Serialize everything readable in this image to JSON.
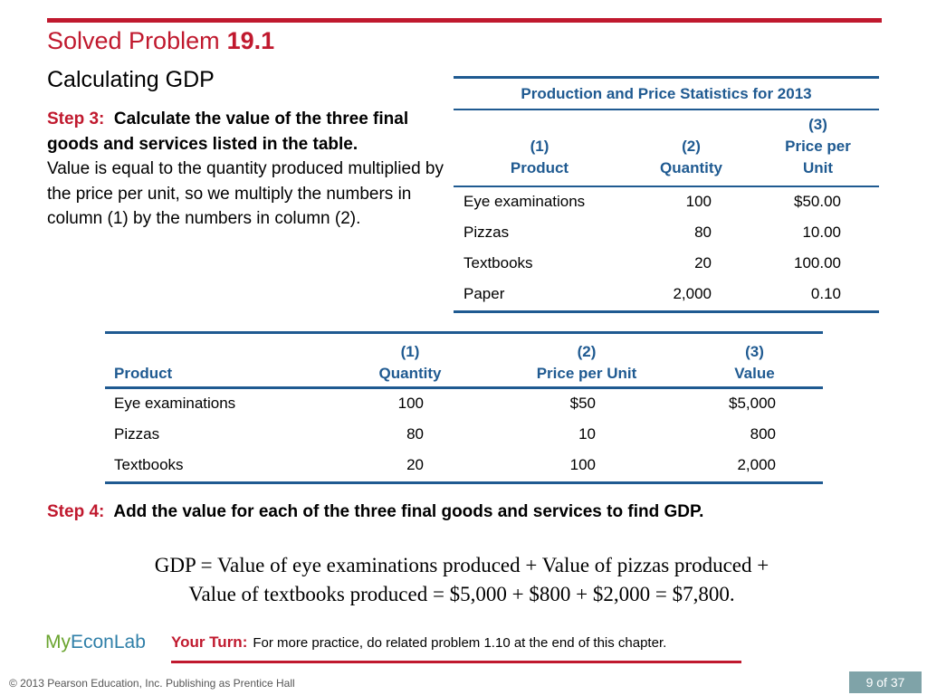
{
  "header": {
    "title": "Solved Problem",
    "number": "19.1",
    "subtitle": "Calculating GDP"
  },
  "step3": {
    "label": "Step 3:",
    "bold_text": "Calculate the value of the three final goods and services listed in the table.",
    "body_text": "Value is equal to the quantity produced multiplied by the price per unit, so we multiply the numbers in column (1) by the numbers in column (2)."
  },
  "table1": {
    "caption": "Production and Price Statistics for 2013",
    "headers": [
      {
        "num": "(1)",
        "label": "Product"
      },
      {
        "num": "(2)",
        "label": "Quantity"
      },
      {
        "num": "(3)",
        "label": "Price per",
        "label2": "Unit"
      }
    ],
    "rows": [
      {
        "product": "Eye examinations",
        "quantity": "100",
        "price": "$50.00"
      },
      {
        "product": "Pizzas",
        "quantity": "80",
        "price": "10.00"
      },
      {
        "product": "Textbooks",
        "quantity": "20",
        "price": "100.00"
      },
      {
        "product": "Paper",
        "quantity": "2,000",
        "price": "0.10"
      }
    ]
  },
  "table2": {
    "headers": [
      {
        "num": "",
        "label": "Product"
      },
      {
        "num": "(1)",
        "label": "Quantity"
      },
      {
        "num": "(2)",
        "label": "Price per Unit"
      },
      {
        "num": "(3)",
        "label": "Value"
      }
    ],
    "rows": [
      {
        "product": "Eye examinations",
        "quantity": "100",
        "price": "$50",
        "value": "$5,000"
      },
      {
        "product": "Pizzas",
        "quantity": "80",
        "price": "10",
        "value": "800"
      },
      {
        "product": "Textbooks",
        "quantity": "20",
        "price": "100",
        "value": "2,000"
      }
    ]
  },
  "step4": {
    "label": "Step 4:",
    "text": "Add the value for each of the three final goods and services to find GDP."
  },
  "formula": {
    "line1": "GDP = Value of eye examinations produced + Value of pizzas produced +",
    "line2": "Value of textbooks produced = $5,000 + $800 + $2,000 = $7,800."
  },
  "footer": {
    "logo_my": "My",
    "logo_rest": "EconLab",
    "your_turn_label": "Your Turn:",
    "your_turn_text": "For more practice, do related problem 1.10 at the end of this chapter.",
    "copyright": "© 2013 Pearson Education, Inc. Publishing as Prentice Hall",
    "page": "9 of 37"
  },
  "colors": {
    "accent_red": "#c0192e",
    "table_blue": "#1f5a91",
    "logo_blue": "#2f7fa8",
    "logo_green": "#6aa42f",
    "page_box": "#7fa3a8"
  }
}
